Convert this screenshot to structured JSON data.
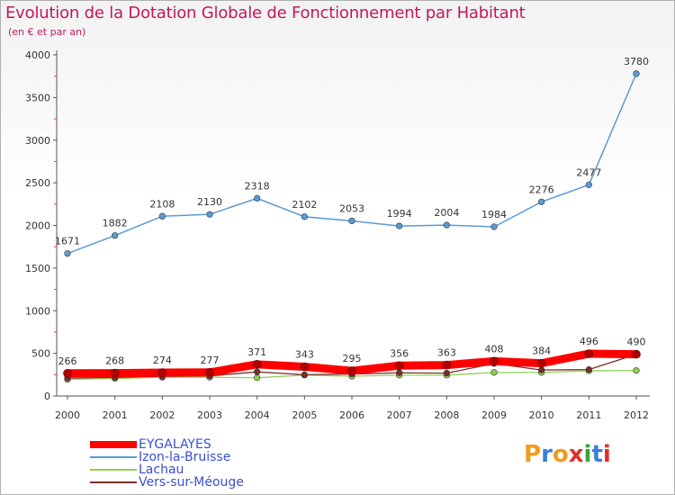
{
  "title": "Evolution de la Dotation Globale de Fonctionnement par Habitant",
  "subtitle": "(en € et par an)",
  "logo_text": "Proxiti",
  "chart_data": {
    "type": "line",
    "title": "Evolution de la Dotation Globale de Fonctionnement par Habitant",
    "subtitle": "(en € et par an)",
    "xlabel": "",
    "ylabel": "",
    "categories": [
      "2000",
      "2001",
      "2002",
      "2003",
      "2004",
      "2005",
      "2006",
      "2007",
      "2008",
      "2009",
      "2010",
      "2011",
      "2012"
    ],
    "yticks": [
      0,
      500,
      1000,
      1500,
      2000,
      2500,
      3000,
      3500,
      4000
    ],
    "ylim": [
      0,
      4000
    ],
    "grid": false,
    "legend_position": "bottom-left",
    "series": [
      {
        "name": "EYGALAYES",
        "color": "#ff0000",
        "values": [
          266,
          268,
          274,
          277,
          371,
          343,
          295,
          356,
          363,
          408,
          384,
          496,
          490
        ],
        "labeled": true
      },
      {
        "name": "Izon-la-Bruisse",
        "color": "#5b9bd5",
        "values": [
          1671,
          1882,
          2108,
          2130,
          2318,
          2102,
          2053,
          1994,
          2004,
          1984,
          2276,
          2477,
          3780
        ],
        "labeled": true
      },
      {
        "name": "Lachau",
        "color": "#8fd14f",
        "values": [
          195,
          205,
          220,
          220,
          214,
          245,
          232,
          244,
          244,
          276,
          276,
          296,
          298
        ],
        "labeled": false
      },
      {
        "name": "Vers-sur-Méouge",
        "color": "#7b2c2c",
        "values": [
          210,
          218,
          230,
          235,
          283,
          249,
          258,
          272,
          268,
          381,
          305,
          310,
          489
        ],
        "labeled": false
      }
    ]
  }
}
